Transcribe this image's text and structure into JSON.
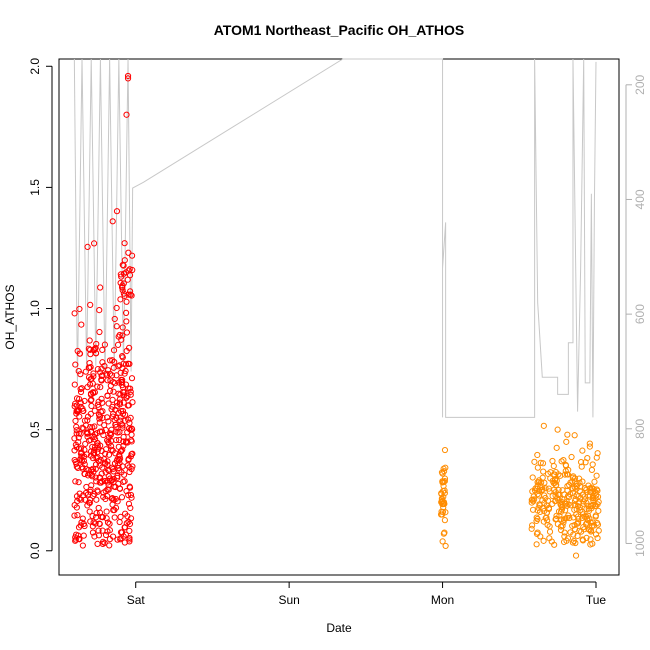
{
  "chart_data": {
    "type": "scatter",
    "title": "ATOM1 Northeast_Pacific OH_ATHOS",
    "xlabel": "Date",
    "ylabel": "OH_ATHOS",
    "x_unit": "days from Friday 00:00",
    "xlim": [
      2.5,
      6.15
    ],
    "ylim": [
      -0.1,
      2.03
    ],
    "x_ticks": [
      {
        "value": 3,
        "label": "Sat"
      },
      {
        "value": 4,
        "label": "Sun"
      },
      {
        "value": 5,
        "label": "Mon"
      },
      {
        "value": 6,
        "label": "Tue"
      }
    ],
    "y_ticks": [
      {
        "value": 0.0,
        "label": "0.0"
      },
      {
        "value": 0.5,
        "label": "0.5"
      },
      {
        "value": 1.0,
        "label": "1.0"
      },
      {
        "value": 1.5,
        "label": "1.5"
      },
      {
        "value": 2.0,
        "label": "2.0"
      }
    ],
    "secondary_axis": {
      "color": "#b0b0b0",
      "ylim": [
        1055,
        155
      ],
      "ticks": [
        {
          "value": 200,
          "label": "200"
        },
        {
          "value": 400,
          "label": "400"
        },
        {
          "value": 600,
          "label": "600"
        },
        {
          "value": 800,
          "label": "800"
        },
        {
          "value": 1000,
          "label": "1000"
        }
      ]
    },
    "series": [
      {
        "color": "#ff0000",
        "marker": "open-circle",
        "clusters": [
          {
            "x": [
              2.6,
              2.98
            ],
            "y_center": 0.45,
            "y_sd": 0.25,
            "n": 520
          },
          {
            "x": [
              2.9,
              2.98
            ],
            "y_center": 1.1,
            "y_sd": 0.08,
            "n": 30
          }
        ],
        "points": [
          [
            2.95,
            1.96
          ],
          [
            2.95,
            1.95
          ],
          [
            2.94,
            1.8
          ],
          [
            2.85,
            1.36
          ]
        ]
      },
      {
        "color": "#ff8c00",
        "marker": "open-circle",
        "clusters": [
          {
            "x": [
              4.99,
              5.02
            ],
            "y_center": 0.22,
            "y_sd": 0.08,
            "n": 40
          },
          {
            "x": [
              5.58,
              6.02
            ],
            "y_center": 0.2,
            "y_sd": 0.1,
            "n": 300
          }
        ],
        "points": [
          [
            5.02,
            0.02
          ],
          [
            5.75,
            0.5
          ],
          [
            5.96,
            0.43
          ],
          [
            5.87,
            -0.02
          ]
        ]
      },
      {
        "color": "#c8c8c8",
        "type": "line",
        "axis": "secondary",
        "points": [
          [
            2.6,
            155
          ],
          [
            2.62,
            720
          ],
          [
            2.65,
            155
          ],
          [
            2.68,
            700
          ],
          [
            2.71,
            155
          ],
          [
            2.74,
            690
          ],
          [
            2.77,
            155
          ],
          [
            2.8,
            710
          ],
          [
            2.83,
            155
          ],
          [
            2.86,
            700
          ],
          [
            2.89,
            155
          ],
          [
            2.92,
            690
          ],
          [
            2.95,
            155
          ],
          [
            2.97,
            700
          ],
          [
            2.98,
            380
          ],
          [
            3.05,
            370
          ],
          [
            4.35,
            155
          ],
          [
            4.95,
            155
          ],
          [
            4.95,
            155
          ],
          [
            5.0,
            155
          ],
          [
            5.0,
            780
          ],
          [
            5.0,
            520
          ],
          [
            5.02,
            440
          ],
          [
            5.02,
            780
          ],
          [
            5.6,
            780
          ],
          [
            5.6,
            155
          ],
          [
            5.62,
            580
          ],
          [
            5.65,
            710
          ],
          [
            5.75,
            710
          ],
          [
            5.75,
            740
          ],
          [
            5.82,
            740
          ],
          [
            5.82,
            650
          ],
          [
            5.85,
            650
          ],
          [
            5.85,
            155
          ],
          [
            5.88,
            770
          ],
          [
            5.9,
            520
          ],
          [
            5.92,
            155
          ],
          [
            5.93,
            720
          ],
          [
            5.96,
            720
          ],
          [
            5.97,
            390
          ],
          [
            5.98,
            780
          ],
          [
            5.99,
            400
          ],
          [
            6.0,
            160
          ]
        ]
      }
    ]
  }
}
